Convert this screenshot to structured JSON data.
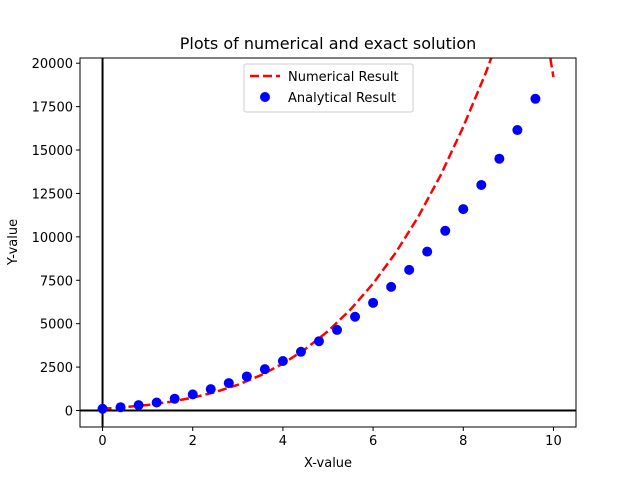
{
  "chart_data": {
    "type": "line",
    "title": "Plots of numerical and exact solution",
    "xlabel": "X-value",
    "ylabel": "Y-value",
    "xlim": [
      -0.5,
      10.5
    ],
    "ylim": [
      -950,
      20300
    ],
    "xticks": [
      0,
      2,
      4,
      6,
      8,
      10
    ],
    "yticks": [
      0,
      2500,
      5000,
      7500,
      10000,
      12500,
      15000,
      17500,
      20000
    ],
    "grid": false,
    "legend_position": "upper center",
    "reference_lines": {
      "horizontal_at_y": 0,
      "vertical_at_x": 0,
      "color": "#000000"
    },
    "series": [
      {
        "name": "Numerical Result",
        "style": "dashed-line",
        "color": "#ff0000",
        "x": [
          0,
          0.5,
          1,
          1.5,
          2,
          2.5,
          3,
          3.5,
          4,
          4.5,
          5,
          5.5,
          6,
          6.5,
          7,
          7.5,
          8,
          8.5,
          9,
          9.5,
          10
        ],
        "y": [
          100,
          195,
          320,
          500,
          740,
          1060,
          1480,
          2020,
          2700,
          3540,
          4570,
          5820,
          7310,
          9080,
          11150,
          13560,
          16340,
          19450,
          23000,
          27000,
          19200
        ]
      },
      {
        "name": "Analytical Result",
        "style": "markers",
        "color": "#0000ff",
        "x": [
          0,
          0.4,
          0.8,
          1.2,
          1.6,
          2.0,
          2.4,
          2.8,
          3.2,
          3.6,
          4.0,
          4.4,
          4.8,
          5.2,
          5.6,
          6.0,
          6.4,
          6.8,
          7.2,
          7.6,
          8.0,
          8.4,
          8.8,
          9.2,
          9.6
        ],
        "y": [
          100,
          190,
          310,
          460,
          680,
          930,
          1230,
          1580,
          1960,
          2380,
          2850,
          3380,
          3990,
          4640,
          5400,
          6200,
          7120,
          8100,
          9150,
          10350,
          11600,
          12990,
          14500,
          16150,
          17950
        ]
      }
    ]
  }
}
